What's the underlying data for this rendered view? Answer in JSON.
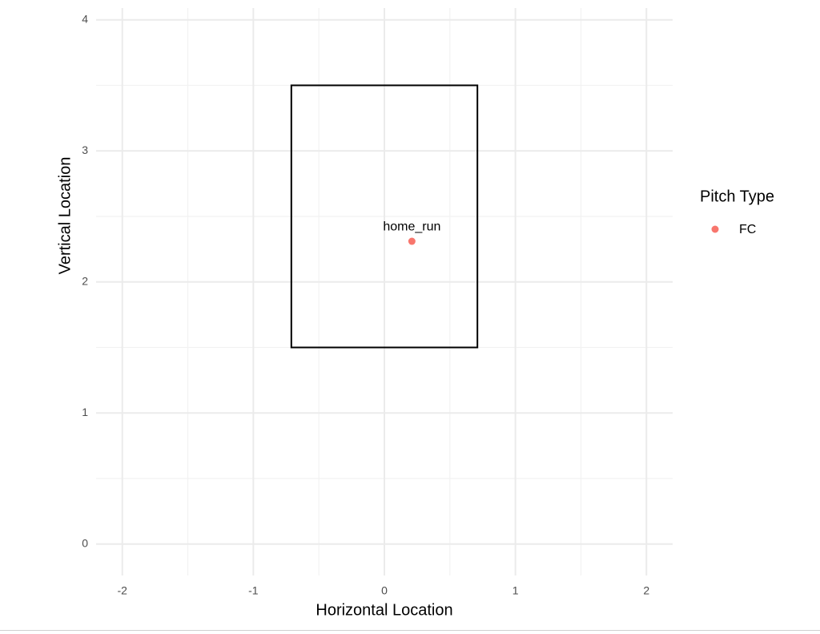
{
  "chart_data": {
    "type": "scatter",
    "x_label": "Horizontal Location",
    "y_label": "Vertical Location",
    "legend_title": "Pitch Type",
    "legend_position": "right",
    "xlim": [
      -2.2,
      2.2
    ],
    "ylim": [
      -0.24,
      4.09
    ],
    "xticks": [
      -2,
      -1,
      0,
      1,
      2
    ],
    "yticks": [
      0,
      1,
      2,
      3,
      4
    ],
    "grid": true,
    "strike_zone": {
      "x": [
        -0.71,
        0.71
      ],
      "y": [
        1.5,
        3.5
      ]
    },
    "series": [
      {
        "name": "FC",
        "color": "#f8766d",
        "x": [
          0.21
        ],
        "values": [
          2.31
        ],
        "labels": [
          "home_run"
        ]
      }
    ]
  }
}
